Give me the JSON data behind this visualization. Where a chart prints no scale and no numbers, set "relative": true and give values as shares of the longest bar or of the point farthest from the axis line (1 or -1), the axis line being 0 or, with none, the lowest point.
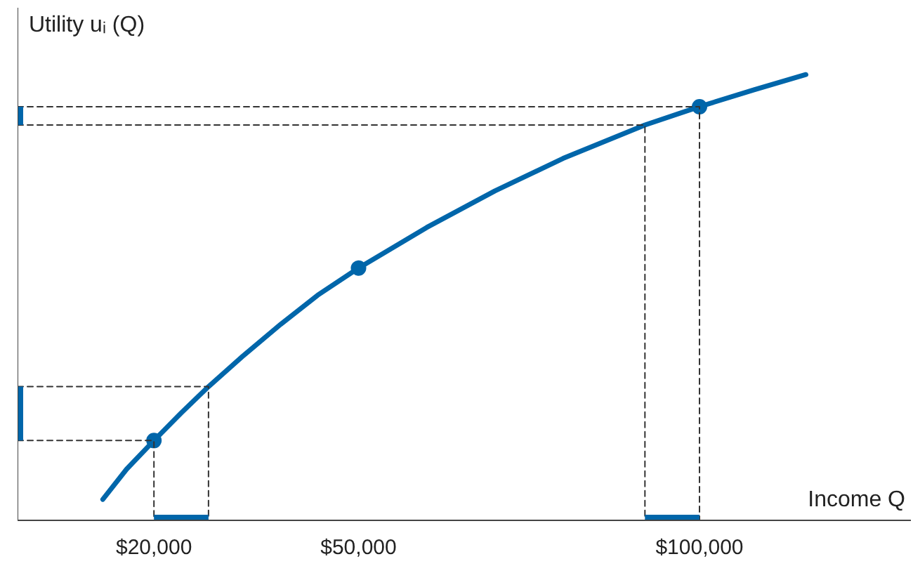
{
  "chart_data": {
    "type": "line",
    "relative": true,
    "xlabel": "Income Q",
    "ylabel": "Utility uᵢ (Q)",
    "xlim": [
      0,
      131000
    ],
    "xticks": [
      {
        "value": 20000,
        "label": "$20,000"
      },
      {
        "value": 50000,
        "label": "$50,000"
      },
      {
        "value": 100000,
        "label": "$100,000"
      }
    ],
    "grid": false,
    "marker": "none",
    "line_style": "solid",
    "series": [
      {
        "color": "#0066aa",
        "x": [
          12500,
          16000,
          20000,
          24000,
          28000,
          33000,
          38600,
          44000,
          50000,
          60000,
          70000,
          80000,
          92000,
          100000,
          108000,
          115600
        ],
        "values": [
          0.047,
          0.115,
          0.179,
          0.241,
          0.3,
          0.368,
          0.44,
          0.505,
          0.566,
          0.657,
          0.739,
          0.812,
          0.887,
          0.928,
          0.966,
          1.0
        ]
      },
      {
        "type": "scatter",
        "marker": "circle",
        "color": "#0066aa",
        "x": [
          20000,
          50000,
          100000
        ],
        "values": [
          0.179,
          0.566,
          0.928
        ]
      },
      {
        "line_style": "dashed",
        "color": "#333333",
        "x": [
          0,
          20000,
          20000
        ],
        "values": [
          0.179,
          0.179,
          0
        ]
      },
      {
        "line_style": "dashed",
        "color": "#333333",
        "x": [
          0,
          28000,
          28000
        ],
        "values": [
          0.3,
          0.3,
          0
        ]
      },
      {
        "line_style": "dashed",
        "color": "#333333",
        "x": [
          0,
          92000,
          92000
        ],
        "values": [
          0.887,
          0.887,
          0
        ]
      },
      {
        "line_style": "dashed",
        "color": "#333333",
        "x": [
          0,
          100000,
          100000
        ],
        "values": [
          0.928,
          0.928,
          0
        ]
      },
      {
        "color": "#0066aa",
        "x": [
          20000,
          28000
        ],
        "values": [
          0,
          0
        ]
      },
      {
        "color": "#0066aa",
        "x": [
          92000,
          100000
        ],
        "values": [
          0,
          0
        ]
      },
      {
        "color": "#0066aa",
        "x": [
          0,
          0
        ],
        "values": [
          0.179,
          0.3
        ]
      },
      {
        "color": "#0066aa",
        "x": [
          0,
          0
        ],
        "values": [
          0.887,
          0.928
        ]
      }
    ]
  }
}
